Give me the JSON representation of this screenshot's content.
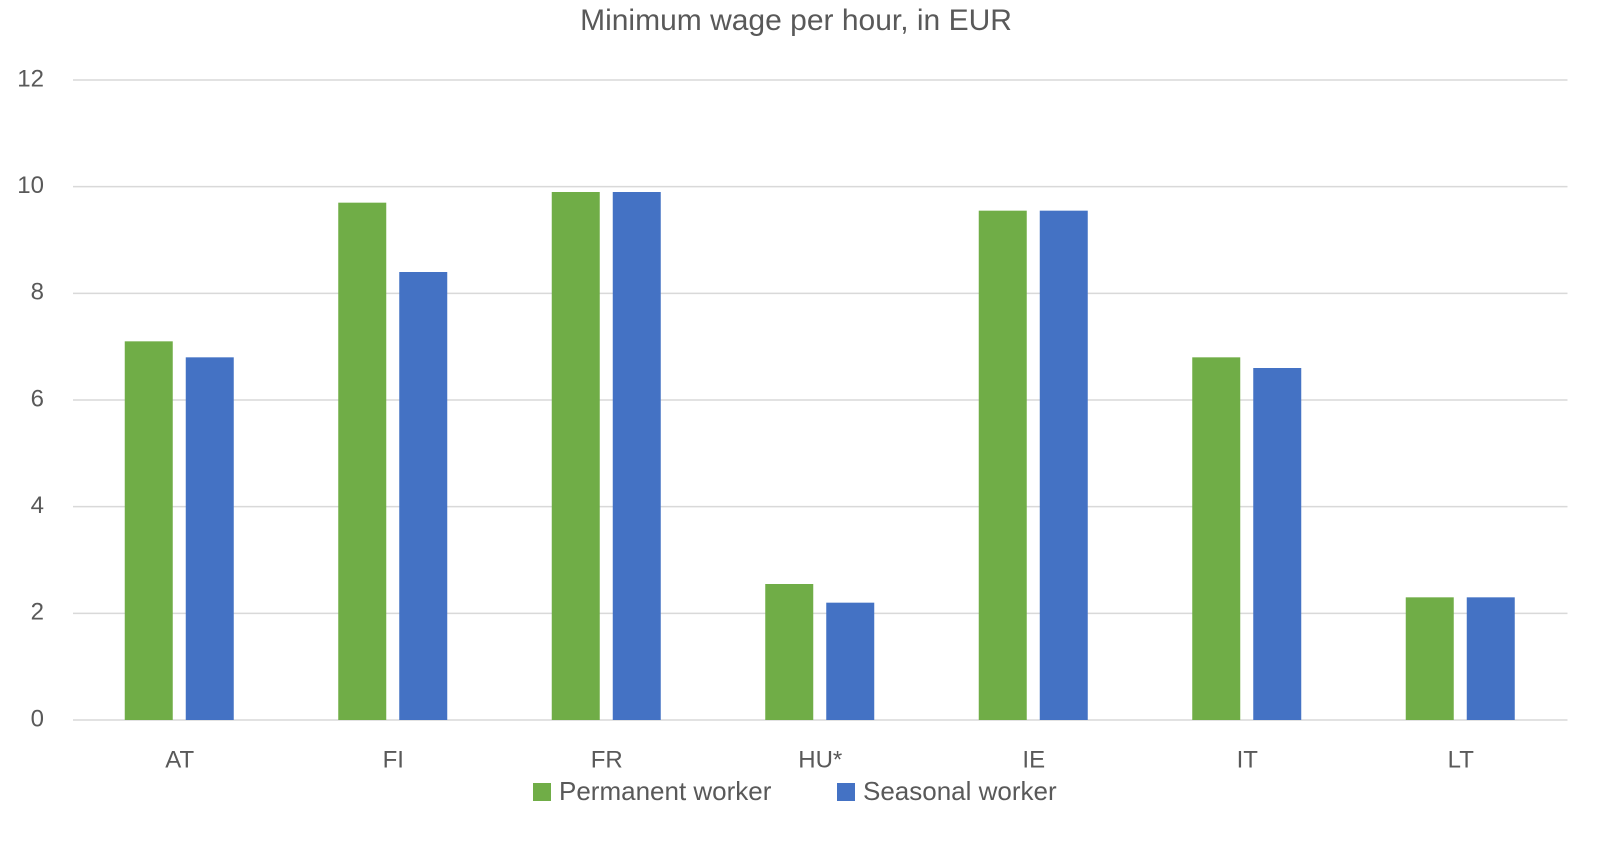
{
  "chart_data": {
    "type": "bar",
    "title": "Minimum wage per hour, in EUR",
    "categories": [
      "AT",
      "FI",
      "FR",
      "HU*",
      "IE",
      "IT",
      "LT"
    ],
    "series": [
      {
        "name": "Permanent worker",
        "color": "#70ad47",
        "values": [
          7.1,
          9.7,
          9.9,
          2.55,
          9.55,
          6.8,
          2.3
        ]
      },
      {
        "name": "Seasonal worker",
        "color": "#4472c4",
        "values": [
          6.8,
          8.4,
          9.9,
          2.2,
          9.55,
          6.6,
          2.3
        ]
      }
    ],
    "ylim": [
      0,
      12
    ],
    "yticks": [
      0,
      2,
      4,
      6,
      8,
      10,
      12
    ],
    "grid": true,
    "legend": "bottom"
  }
}
